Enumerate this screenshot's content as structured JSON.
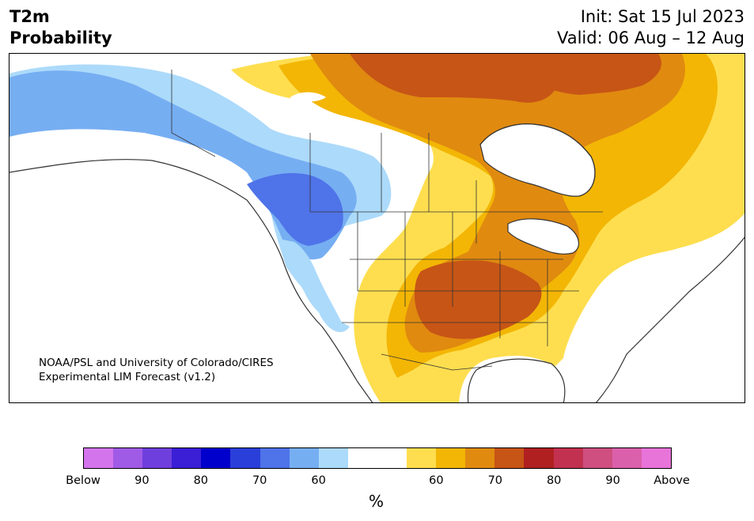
{
  "header": {
    "title_line1": "T2m",
    "title_line2": "Probability",
    "init": "Init: Sat 15 Jul 2023",
    "valid": "Valid: 06 Aug – 12 Aug"
  },
  "credit": {
    "line1": "NOAA/PSL and University of Colorado/CIRES",
    "line2": "Experimental LIM Forecast (v1.2)"
  },
  "colorbar": {
    "colors": [
      "#d474ec",
      "#a05be6",
      "#6f3fdd",
      "#3a1fd6",
      "#0000cc",
      "#2a3fd9",
      "#4f73e8",
      "#76aef2",
      "#acdafa",
      "#ffffff",
      "#ffffff",
      "#fede4f",
      "#f3b605",
      "#e08a10",
      "#c75516",
      "#b02020",
      "#c23150",
      "#cf4f80",
      "#db60ac",
      "#e873d9"
    ],
    "tick_labels": [
      "Below",
      "90",
      "80",
      "70",
      "60",
      "60",
      "70",
      "80",
      "90",
      "Above"
    ],
    "unit": "%"
  },
  "map": {
    "region": "North America",
    "category_colors": {
      "below_50": "#76aef2",
      "below_60": "#acdafa",
      "below_70": "#4f73e8",
      "above_50": "#fede4f",
      "above_60": "#f3b605",
      "above_70": "#e08a10",
      "above_80": "#c75516",
      "land_line": "#333333"
    }
  }
}
